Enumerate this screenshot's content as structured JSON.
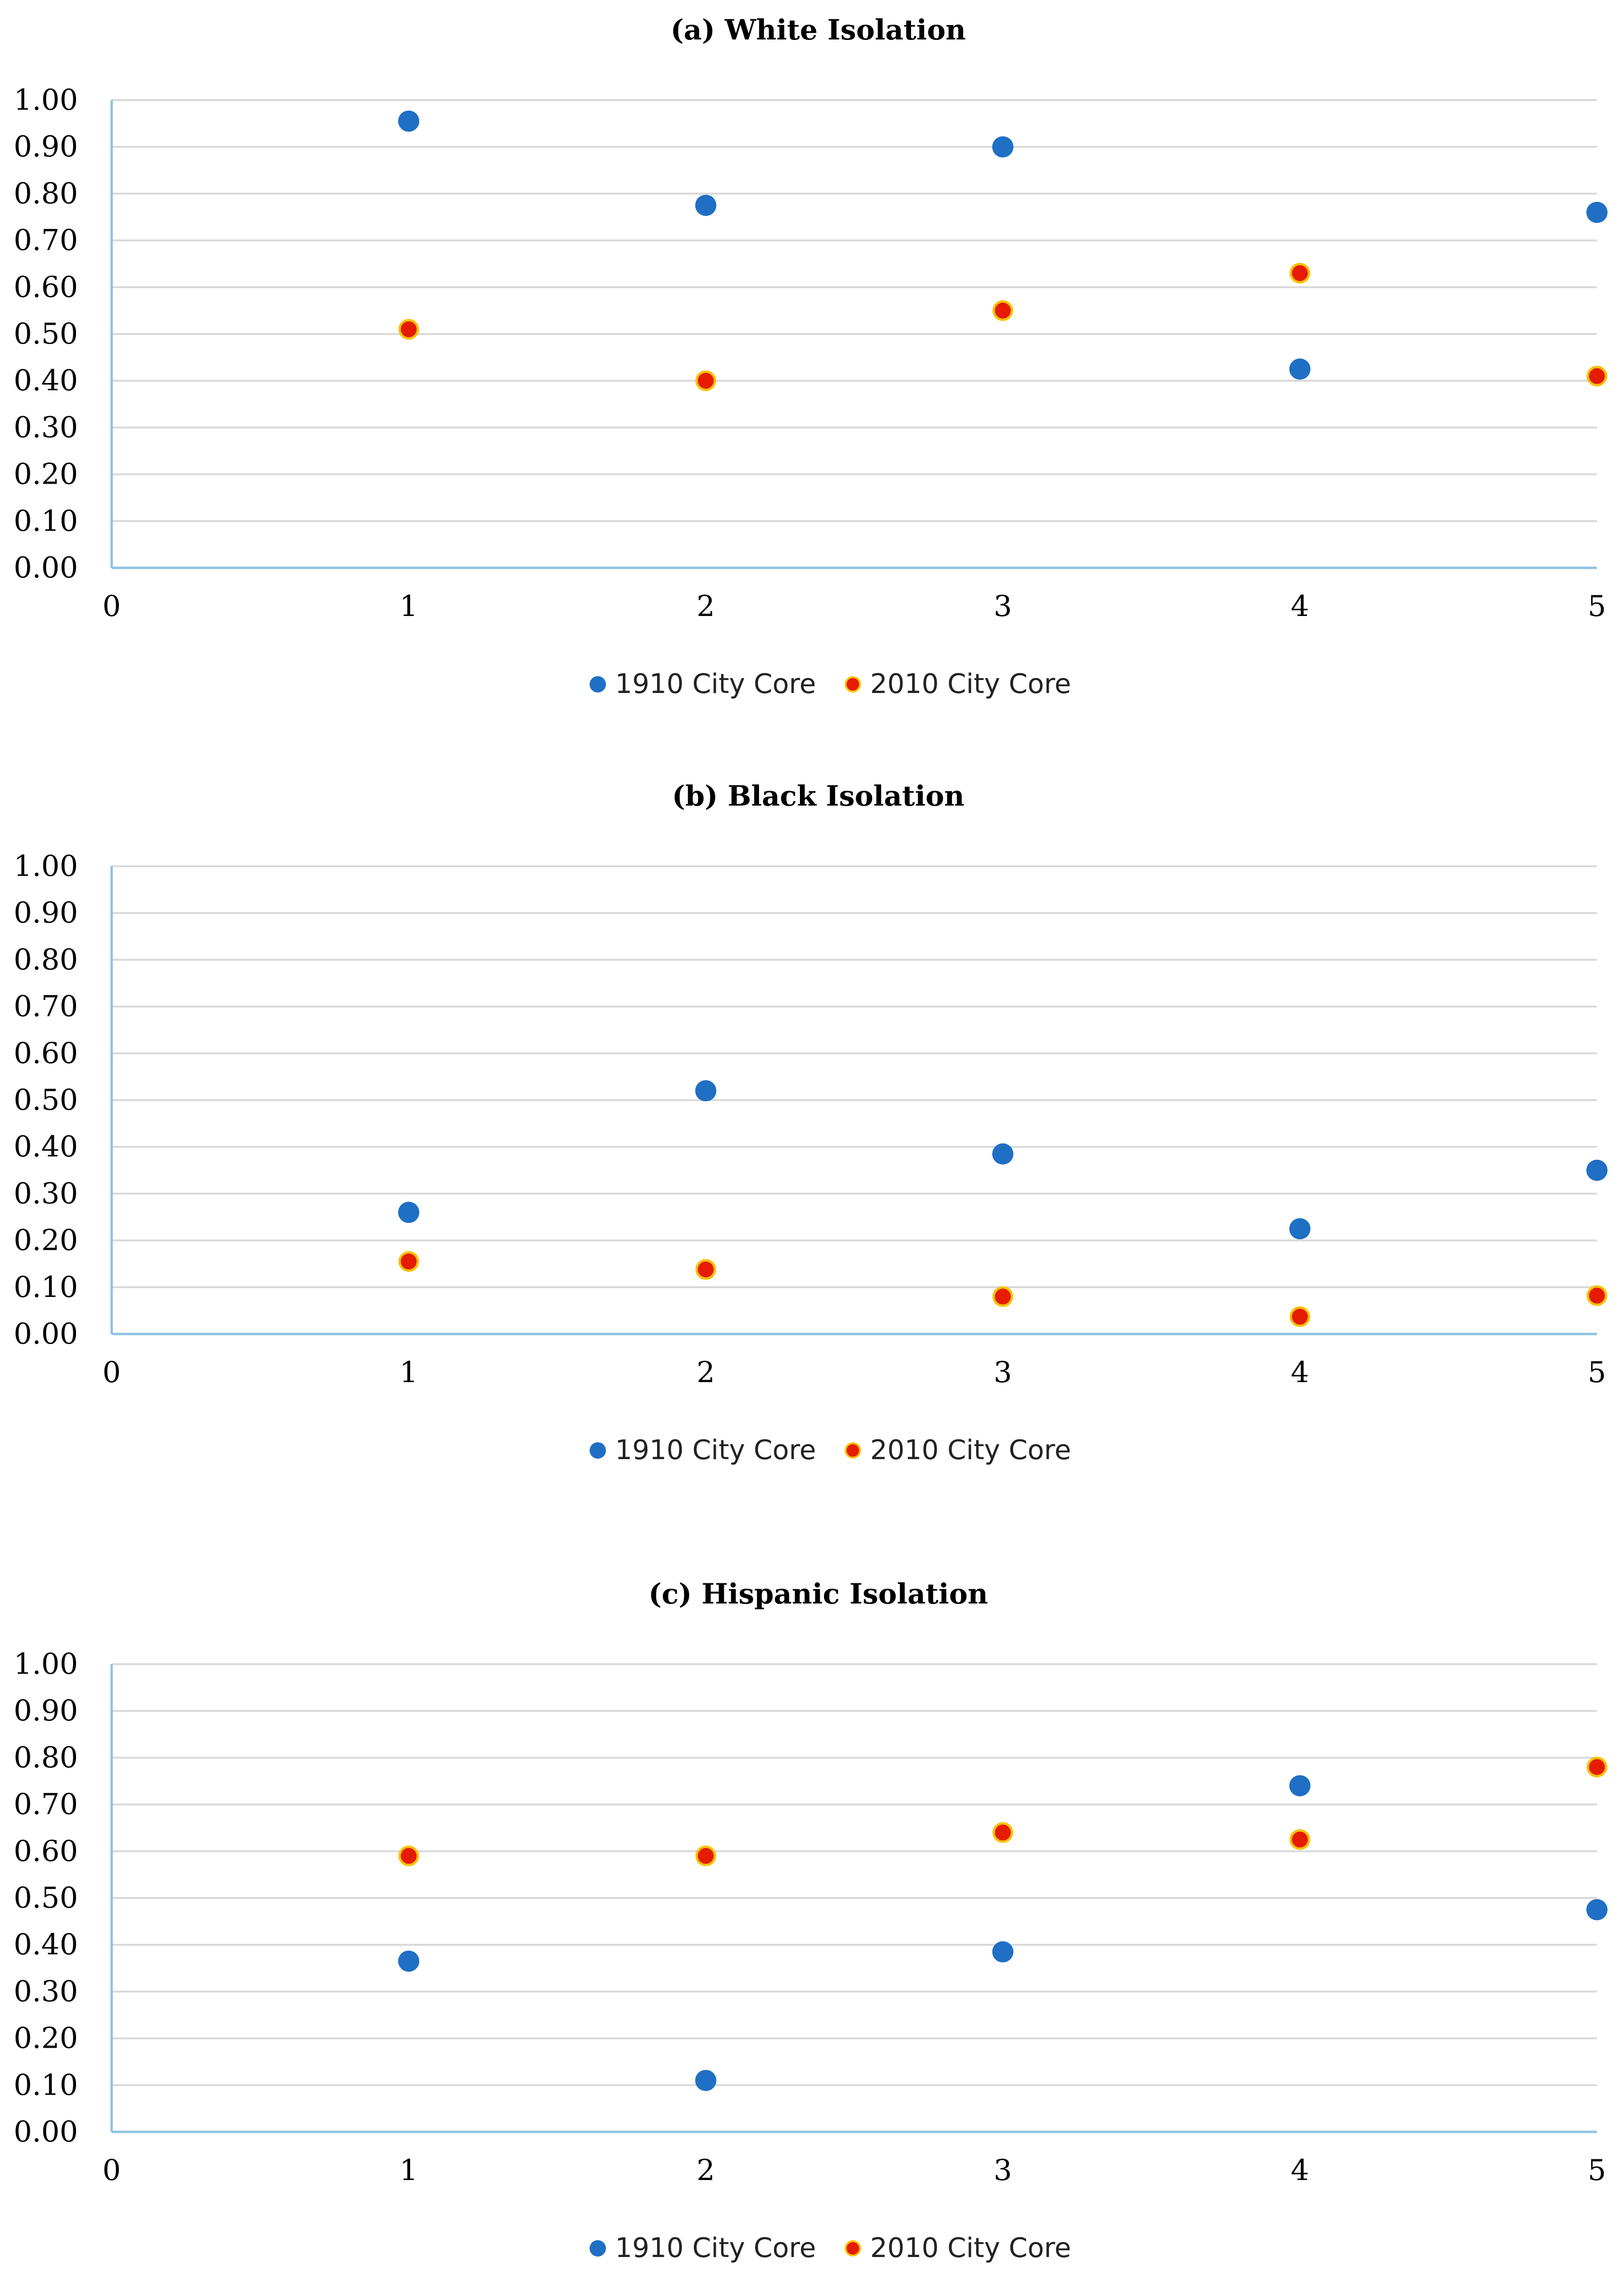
{
  "chart_data": [
    {
      "type": "scatter",
      "title": "(a) White Isolation",
      "x_ticks": [
        "0",
        "1",
        "2",
        "3",
        "4",
        "5"
      ],
      "y_ticks": [
        "0.00",
        "0.10",
        "0.20",
        "0.30",
        "0.40",
        "0.50",
        "0.60",
        "0.70",
        "0.80",
        "0.90",
        "1.00"
      ],
      "xlim": [
        0,
        5
      ],
      "ylim": [
        0,
        1
      ],
      "grid": true,
      "legend_position": "bottom-center",
      "series": [
        {
          "name": "1910 City Core",
          "color": "#1f6fc5",
          "stroke": "#1f6fc5",
          "x": [
            1,
            2,
            3,
            4,
            5
          ],
          "y": [
            0.955,
            0.775,
            0.9,
            0.425,
            0.76
          ]
        },
        {
          "name": "2010 City Core",
          "color": "#e51c00",
          "stroke": "#f7c200",
          "x": [
            1,
            2,
            3,
            4,
            5
          ],
          "y": [
            0.51,
            0.4,
            0.55,
            0.63,
            0.41
          ]
        }
      ]
    },
    {
      "type": "scatter",
      "title": "(b) Black Isolation",
      "x_ticks": [
        "0",
        "1",
        "2",
        "3",
        "4",
        "5"
      ],
      "y_ticks": [
        "0.00",
        "0.10",
        "0.20",
        "0.30",
        "0.40",
        "0.50",
        "0.60",
        "0.70",
        "0.80",
        "0.90",
        "1.00"
      ],
      "xlim": [
        0,
        5
      ],
      "ylim": [
        0,
        1
      ],
      "grid": true,
      "legend_position": "bottom-center",
      "series": [
        {
          "name": "1910 City Core",
          "color": "#1f6fc5",
          "stroke": "#1f6fc5",
          "x": [
            1,
            2,
            3,
            4,
            5
          ],
          "y": [
            0.26,
            0.52,
            0.385,
            0.225,
            0.35
          ]
        },
        {
          "name": "2010 City Core",
          "color": "#e51c00",
          "stroke": "#f7c200",
          "x": [
            1,
            2,
            3,
            4,
            5
          ],
          "y": [
            0.155,
            0.138,
            0.08,
            0.037,
            0.082
          ]
        }
      ]
    },
    {
      "type": "scatter",
      "title": "(c) Hispanic Isolation",
      "x_ticks": [
        "0",
        "1",
        "2",
        "3",
        "4",
        "5"
      ],
      "y_ticks": [
        "0.00",
        "0.10",
        "0.20",
        "0.30",
        "0.40",
        "0.50",
        "0.60",
        "0.70",
        "0.80",
        "0.90",
        "1.00"
      ],
      "xlim": [
        0,
        5
      ],
      "ylim": [
        0,
        1
      ],
      "grid": true,
      "legend_position": "bottom-center",
      "series": [
        {
          "name": "1910 City Core",
          "color": "#1f6fc5",
          "stroke": "#1f6fc5",
          "x": [
            1,
            2,
            3,
            4,
            5
          ],
          "y": [
            0.365,
            0.11,
            0.385,
            0.74,
            0.475
          ]
        },
        {
          "name": "2010 City Core",
          "color": "#e51c00",
          "stroke": "#f7c200",
          "x": [
            1,
            2,
            3,
            4,
            5
          ],
          "y": [
            0.59,
            0.59,
            0.64,
            0.625,
            0.78
          ]
        }
      ]
    }
  ]
}
